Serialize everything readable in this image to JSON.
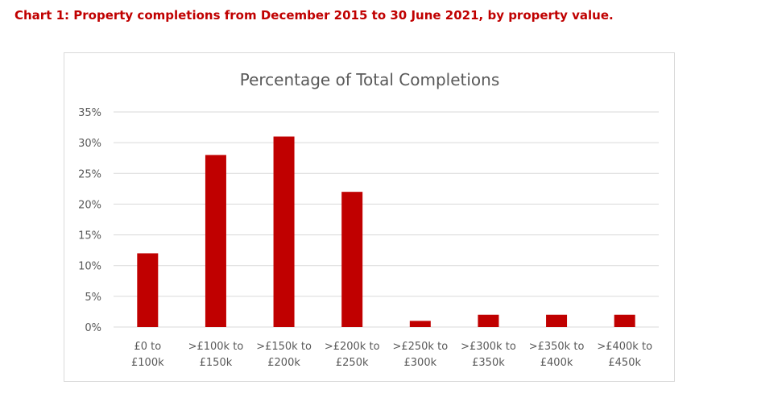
{
  "heading": "Chart 1: Property completions from December 2015 to 30 June 2021, by property value.",
  "colors": {
    "heading": "#c00000",
    "bar": "#c00000",
    "grid": "#d9d9d9",
    "text": "#595959"
  },
  "chart_data": {
    "type": "bar",
    "title": "Percentage of Total Completions",
    "xlabel": "",
    "ylabel": "",
    "ylim": [
      0,
      35
    ],
    "yticks": [
      "0%",
      "5%",
      "10%",
      "15%",
      "20%",
      "25%",
      "30%",
      "35%"
    ],
    "ytick_values": [
      0,
      5,
      10,
      15,
      20,
      25,
      30,
      35
    ],
    "grid": true,
    "categories": [
      [
        "£0 to",
        "£100k"
      ],
      [
        ">£100k to",
        "£150k"
      ],
      [
        ">£150k to",
        "£200k"
      ],
      [
        ">£200k to",
        "£250k"
      ],
      [
        ">£250k to",
        "£300k"
      ],
      [
        ">£300k to",
        "£350k"
      ],
      [
        ">£350k to",
        "£400k"
      ],
      [
        ">£400k to",
        "£450k"
      ]
    ],
    "values": [
      12,
      28,
      31,
      22,
      1,
      2,
      2,
      2
    ]
  }
}
